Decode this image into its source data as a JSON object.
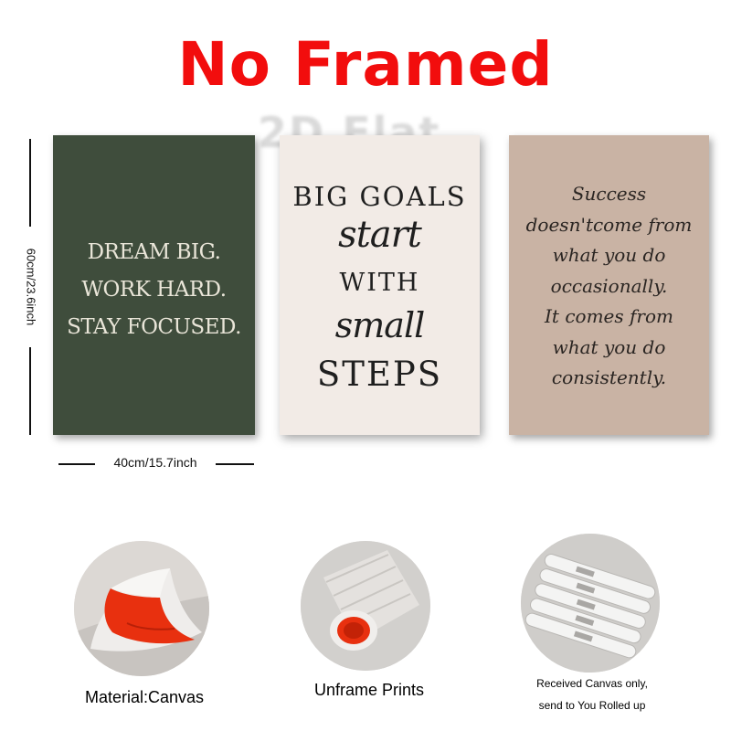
{
  "headline": "No Framed",
  "watermark": "2D Flat",
  "dimensions": {
    "height_label": "60cm/23.6inch",
    "width_label": "40cm/15.7inch"
  },
  "posters": [
    {
      "background": "#3f4d3c",
      "lines": [
        "DREAM BIG.",
        "WORK HARD.",
        "STAY FOCUSED."
      ]
    },
    {
      "background": "#f2ebe6",
      "lines": [
        "BIG GOALS",
        "start",
        "WITH",
        "small",
        "STEPS"
      ]
    },
    {
      "background": "#c9b3a4",
      "lines": [
        "Success",
        "doesn'tcome from",
        "what you do",
        "occasionally.",
        "It comes from",
        "what you do",
        "consistently."
      ]
    }
  ],
  "features": [
    {
      "caption": "Material:Canvas",
      "icon": "canvas-roll-icon"
    },
    {
      "caption": "Unframe  Prints",
      "icon": "rolled-print-icon"
    },
    {
      "caption_lines": [
        "Received Canvas only,",
        "send to You Rolled up"
      ],
      "icon": "rolled-tubes-icon"
    }
  ],
  "colors": {
    "headline": "#f20d0d",
    "canvas_backing": "#e8300f"
  }
}
